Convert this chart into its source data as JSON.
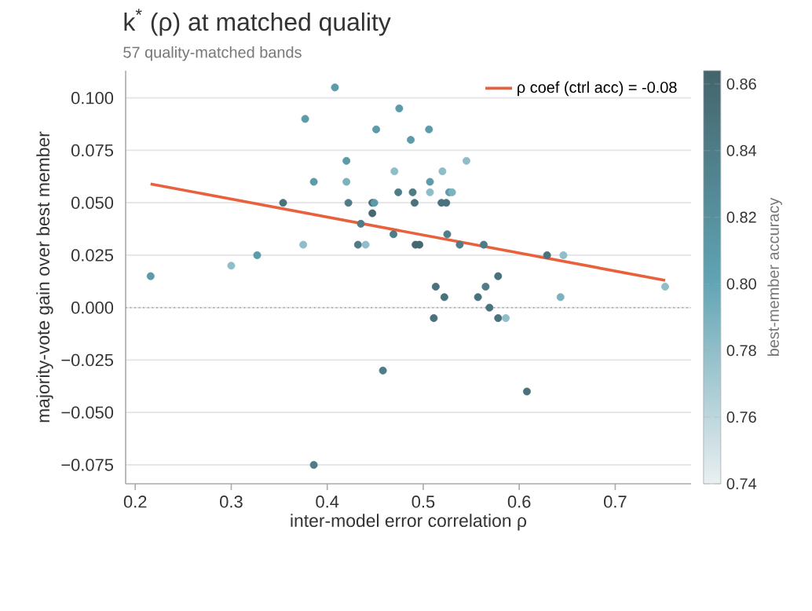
{
  "chart_data": {
    "type": "scatter",
    "title": "k$^{*}$ (ρ) at matched quality",
    "subtitle": "57 quality-matched bands",
    "xlabel": "inter-model error correlation ρ",
    "ylabel": "majority-vote gain over best member",
    "clabel": "best-member accuracy",
    "series": [
      {
        "marker": "circle",
        "colors": [
          "#5c9ba9",
          "#5c9ba9",
          "#5c9ba9",
          "#5c9ba9",
          "#5c9ba9",
          "#5c9ba9",
          "#5c9ba9",
          "#5c9ba9",
          "#7ab2be",
          "#90bec8",
          "#90bec8",
          "#5c9ba9",
          "#4a727c",
          "#4f7c87",
          "#466870",
          "#5c9ba9",
          "#4f7c87",
          "#4f7c87",
          "#90bec8",
          "#4a727c",
          "#4a727c",
          "#4a727c",
          "#5c9ba9",
          "#466870",
          "#4f7c87",
          "#4f7c87",
          "#4f7c87",
          "#4f7c87",
          "#90bec8",
          "#90bec8",
          "#466870",
          "#466870",
          "#5c9ba9",
          "#90bec8",
          "#5c9ba9",
          "#4a727c",
          "#4a727c",
          "#90bec8",
          "#7ab2be",
          "#4f7c87",
          "#4f7c87",
          "#4a727c",
          "#90bec8",
          "#4a727c",
          "#4f7c87",
          "#4a727c",
          "#7ab2be",
          "#90bec8",
          "#4a727c",
          "#4a727c",
          "#4a727c",
          "#90bec8",
          "#4a727c",
          "#4f7c87",
          "#4f7c87"
        ],
        "x": [
          0.408,
          0.377,
          0.475,
          0.451,
          0.506,
          0.487,
          0.42,
          0.386,
          0.42,
          0.47,
          0.52,
          0.507,
          0.354,
          0.422,
          0.447,
          0.449,
          0.474,
          0.489,
          0.507,
          0.491,
          0.519,
          0.524,
          0.527,
          0.447,
          0.435,
          0.469,
          0.525,
          0.432,
          0.44,
          0.375,
          0.492,
          0.496,
          0.327,
          0.3,
          0.216,
          0.513,
          0.522,
          0.545,
          0.53,
          0.538,
          0.563,
          0.629,
          0.646,
          0.578,
          0.565,
          0.557,
          0.643,
          0.752,
          0.511,
          0.569,
          0.578,
          0.586,
          0.608,
          0.458,
          0.386
        ],
        "values": [
          0.105,
          0.09,
          0.095,
          0.085,
          0.085,
          0.08,
          0.07,
          0.06,
          0.06,
          0.065,
          0.065,
          0.06,
          0.05,
          0.05,
          0.05,
          0.05,
          0.055,
          0.055,
          0.055,
          0.05,
          0.05,
          0.05,
          0.055,
          0.045,
          0.04,
          0.035,
          0.035,
          0.03,
          0.03,
          0.03,
          0.03,
          0.03,
          0.025,
          0.02,
          0.015,
          0.01,
          0.005,
          0.07,
          0.055,
          0.03,
          0.03,
          0.025,
          0.025,
          0.015,
          0.01,
          0.005,
          0.005,
          0.01,
          -0.005,
          0.0,
          -0.005,
          -0.005,
          -0.04,
          -0.03,
          -0.075
        ],
        "cvalues": [
          0.81,
          0.81,
          0.81,
          0.81,
          0.81,
          0.81,
          0.81,
          0.81,
          0.79,
          0.78,
          0.78,
          0.81,
          0.85,
          0.84,
          0.86,
          0.81,
          0.84,
          0.84,
          0.78,
          0.85,
          0.85,
          0.85,
          0.81,
          0.86,
          0.84,
          0.84,
          0.84,
          0.84,
          0.78,
          0.78,
          0.86,
          0.86,
          0.81,
          0.78,
          0.81,
          0.85,
          0.85,
          0.78,
          0.79,
          0.84,
          0.84,
          0.85,
          0.78,
          0.85,
          0.84,
          0.85,
          0.79,
          0.78,
          0.85,
          0.85,
          0.85,
          0.78,
          0.85,
          0.84,
          0.84
        ]
      },
      {
        "type": "line",
        "marker": "none",
        "name": "ρ coef (ctrl acc) = -0.08",
        "color": "#e8603c",
        "x": [
          0.216,
          0.752
        ],
        "values": [
          0.059,
          0.013
        ]
      }
    ],
    "xlim": [
      0.19,
      0.779
    ],
    "ylim": [
      -0.084,
      0.113
    ],
    "xticks": [
      0.2,
      0.3,
      0.4,
      0.5,
      0.6,
      0.7
    ],
    "yticks": [
      {
        "value": -0.075,
        "label": "−0.075"
      },
      {
        "value": -0.05,
        "label": "−0.050"
      },
      {
        "value": -0.025,
        "label": "−0.025"
      },
      {
        "value": 0,
        "label": "0.000"
      },
      {
        "value": 0.025,
        "label": "0.025"
      },
      {
        "value": 0.05,
        "label": "0.050"
      },
      {
        "value": 0.075,
        "label": "0.075"
      },
      {
        "value": 0.1,
        "label": "0.100"
      }
    ],
    "clim": [
      0.74,
      0.864
    ],
    "cticks": [
      {
        "value": 0.74,
        "label": "0.74"
      },
      {
        "value": 0.76,
        "label": "0.76"
      },
      {
        "value": 0.78,
        "label": "0.78"
      },
      {
        "value": 0.8,
        "label": "0.80"
      },
      {
        "value": 0.82,
        "label": "0.82"
      },
      {
        "value": 0.84,
        "label": "0.84"
      },
      {
        "value": 0.86,
        "label": "0.86"
      }
    ],
    "ref_lines": [
      {
        "axis": "y",
        "value": 0,
        "color": "#9a9a9a",
        "line_style": "dotted"
      }
    ],
    "grid": "y",
    "legend": "top right"
  }
}
